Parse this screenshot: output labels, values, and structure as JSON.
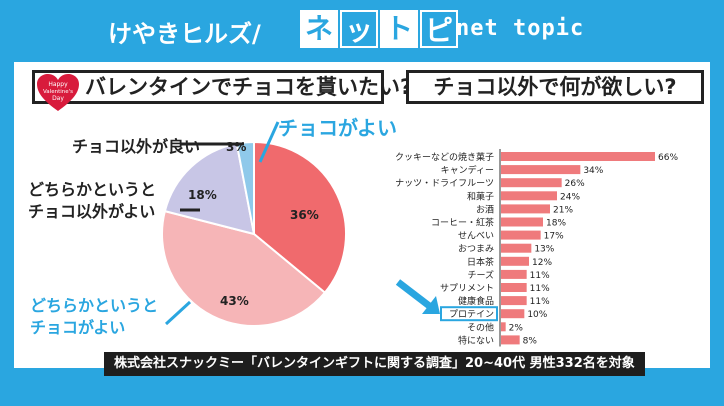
{
  "header": {
    "left_title": "けやきヒルズ/",
    "logo_tiles": [
      "ネ",
      "ッ",
      "ト",
      "ピ"
    ],
    "right_title": "net topic"
  },
  "questions": {
    "q1": "バレンタインでチョコを貰いたい?",
    "q2": "チョコ以外で何が欲しい?"
  },
  "badge": {
    "line1": "Happy",
    "line2": "Valentine's",
    "line3": "Day"
  },
  "pie_labels": {
    "other_good": "チョコ以外が良い",
    "rather_other_1": "どちらかというと",
    "rather_other_2": "チョコ以外がよい",
    "choco_good": "チョコがよい",
    "rather_choco_1": "どちらかというと",
    "rather_choco_2": "チョコがよい"
  },
  "source": "株式会社スナックミー「バレンタインギフトに関する調査」20~40代 男性332名を対象",
  "colors": {
    "accent": "#2aa6e0",
    "pie_choco": "#f06a6d",
    "pie_rather_choco": "#f6b5b7",
    "pie_rather_other": "#c8c6e6",
    "pie_other": "#8fc9ea",
    "bar": "#ef7a7c"
  },
  "chart_data": [
    {
      "type": "pie",
      "slices": [
        {
          "label": "チョコがよい",
          "value": 36
        },
        {
          "label": "どちらかというとチョコがよい",
          "value": 43
        },
        {
          "label": "どちらかというとチョコ以外がよい",
          "value": 18
        },
        {
          "label": "チョコ以外が良い",
          "value": 3
        }
      ],
      "value_labels": [
        "36%",
        "43%",
        "18%",
        "3%"
      ]
    },
    {
      "type": "bar",
      "orientation": "horizontal",
      "categories": [
        "クッキーなどの焼き菓子",
        "キャンディー",
        "ナッツ・ドライフルーツ",
        "和菓子",
        "お酒",
        "コーヒー・紅茶",
        "せんべい",
        "おつまみ",
        "日本茶",
        "チーズ",
        "サプリメント",
        "健康食品",
        "プロテイン",
        "その他",
        "特にない"
      ],
      "values": [
        66,
        34,
        26,
        24,
        21,
        18,
        17,
        13,
        12,
        11,
        11,
        11,
        10,
        2,
        8
      ],
      "value_labels": [
        "66%",
        "34%",
        "26%",
        "24%",
        "21%",
        "18%",
        "17%",
        "13%",
        "12%",
        "11%",
        "11%",
        "11%",
        "10%",
        "2%",
        "8%"
      ],
      "highlighted": "プロテイン"
    }
  ]
}
